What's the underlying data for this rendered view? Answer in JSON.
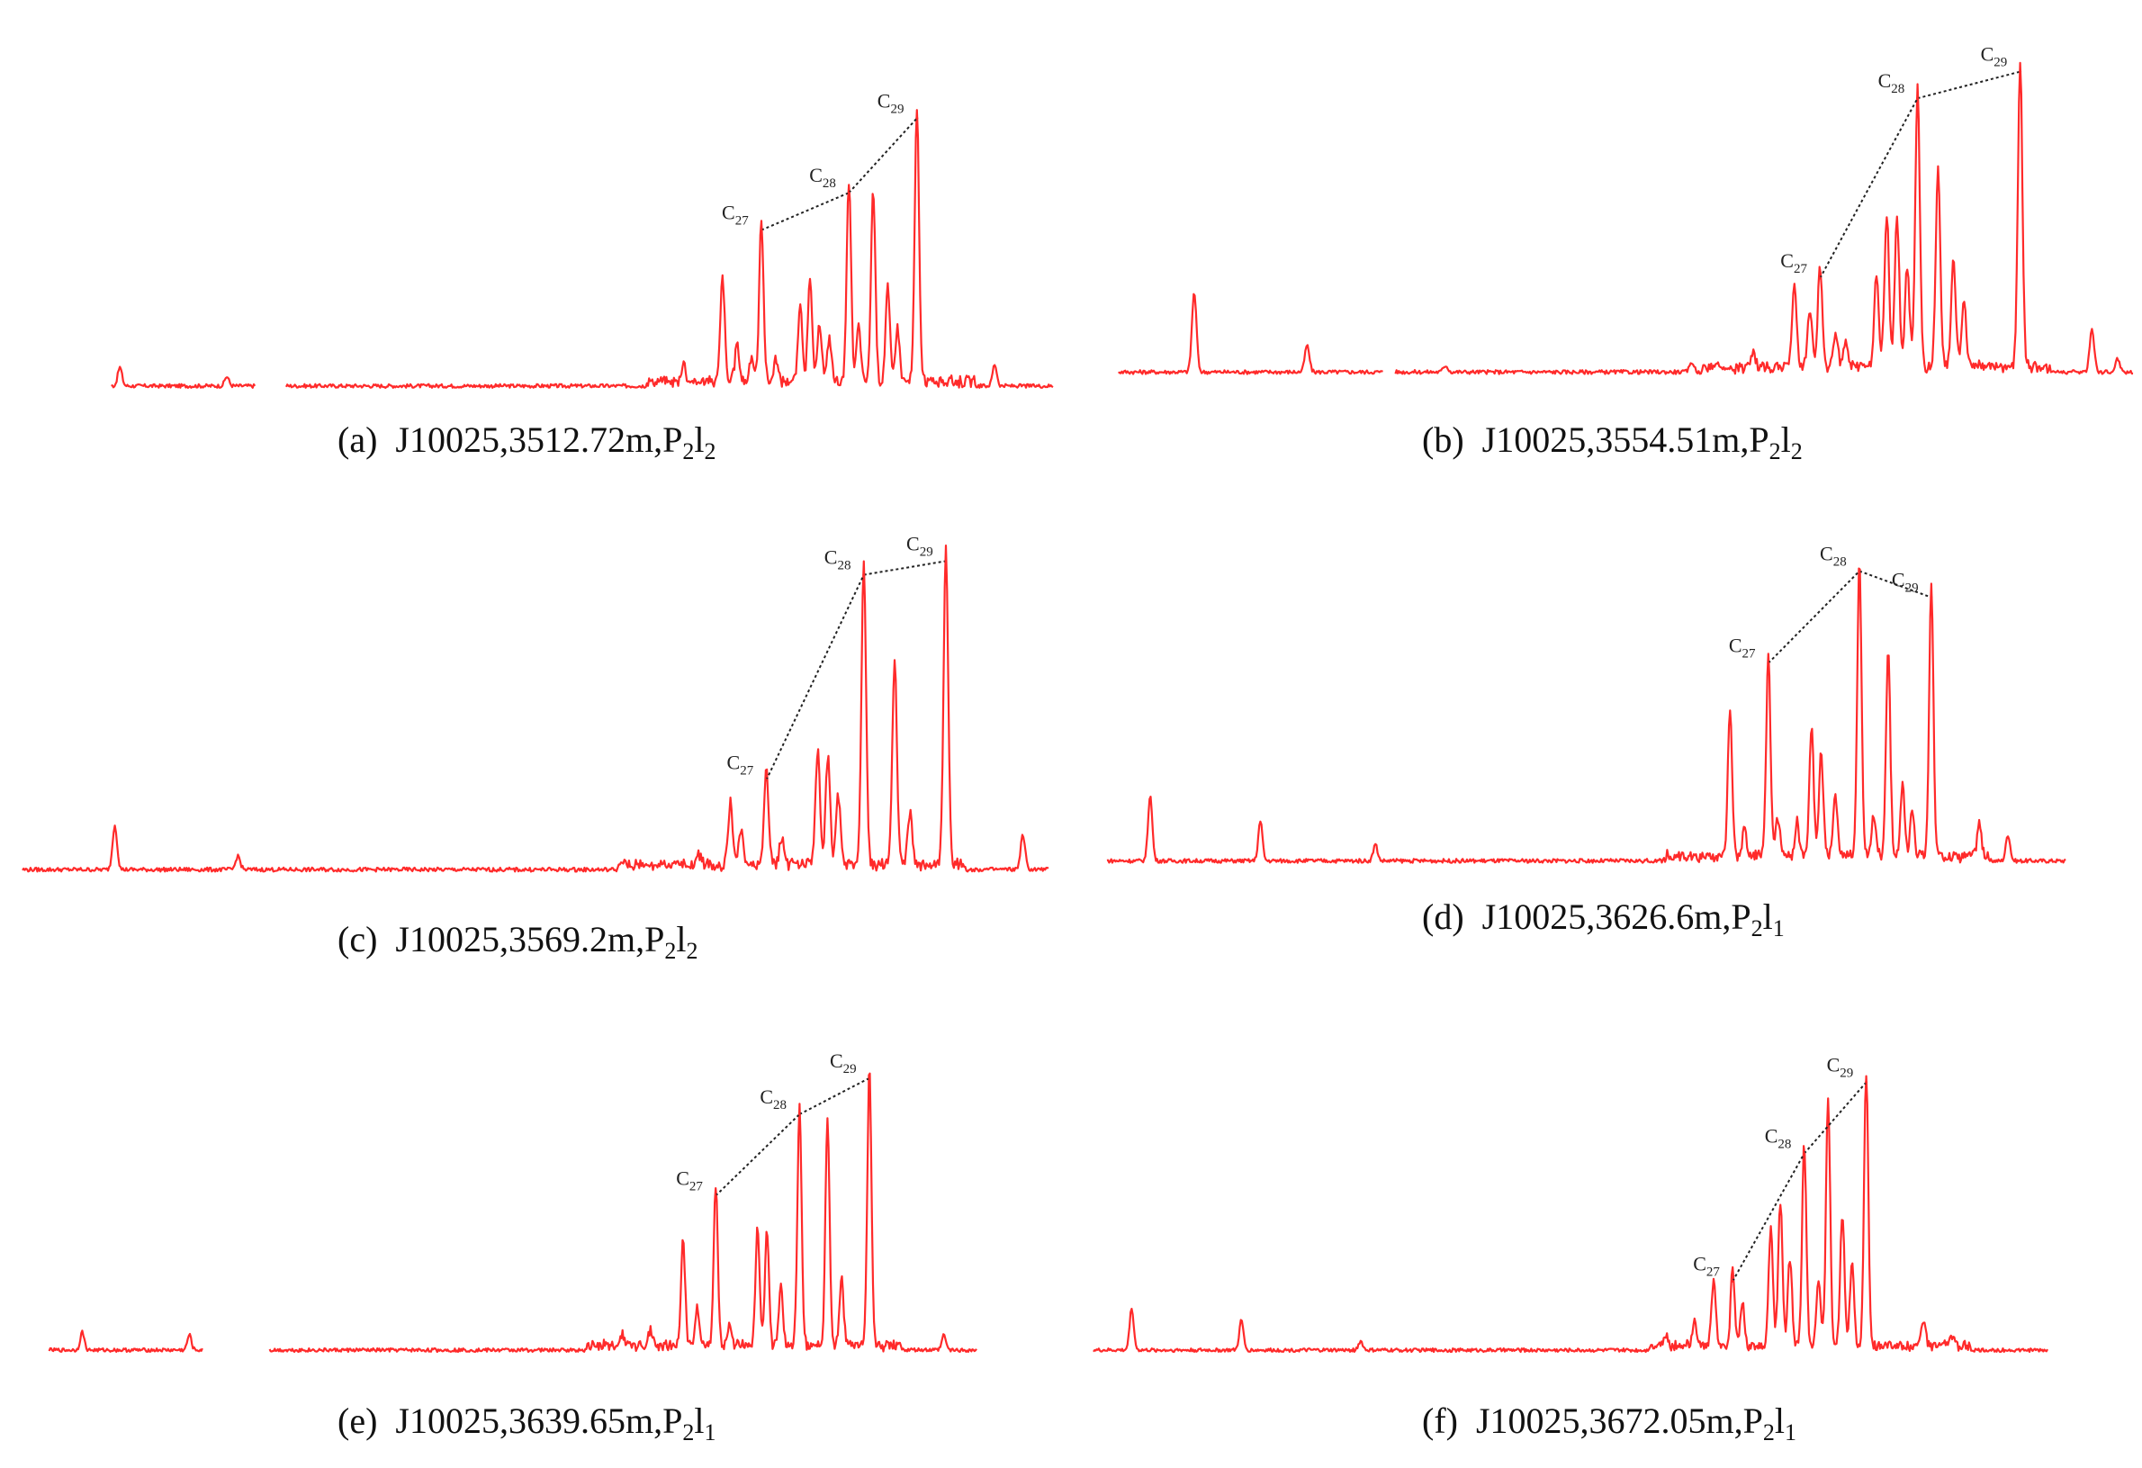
{
  "style": {
    "trace_color": "#ff2a2a",
    "connector_color": "#222222",
    "background": "#ffffff"
  },
  "chart_data": [
    {
      "type": "line",
      "panel": "a",
      "caption": {
        "letter": "(a)",
        "well": "J10025",
        "depth": "3512.72m",
        "formation_base": "P",
        "formation_sub1": "2",
        "formation_mid": "l",
        "formation_sub2": "2"
      },
      "marked_peaks": [
        {
          "label": "C",
          "sub": "27",
          "x": 0.7,
          "y": 0.52
        },
        {
          "label": "C",
          "sub": "28",
          "x": 0.79,
          "y": 0.64
        },
        {
          "label": "C",
          "sub": "29",
          "x": 0.86,
          "y": 0.88
        }
      ],
      "peaks": [
        [
          0.04,
          0.06
        ],
        [
          0.15,
          0.03
        ],
        [
          0.62,
          0.06
        ],
        [
          0.66,
          0.34
        ],
        [
          0.675,
          0.12
        ],
        [
          0.69,
          0.08
        ],
        [
          0.7,
          0.52
        ],
        [
          0.715,
          0.07
        ],
        [
          0.74,
          0.24
        ],
        [
          0.75,
          0.32
        ],
        [
          0.76,
          0.18
        ],
        [
          0.77,
          0.14
        ],
        [
          0.79,
          0.64
        ],
        [
          0.8,
          0.18
        ],
        [
          0.815,
          0.62
        ],
        [
          0.83,
          0.3
        ],
        [
          0.84,
          0.18
        ],
        [
          0.86,
          0.88
        ],
        [
          0.94,
          0.07
        ]
      ],
      "gaps": [
        [
          0.0,
          0.03
        ],
        [
          0.18,
          0.21
        ]
      ]
    },
    {
      "type": "line",
      "panel": "b",
      "caption": {
        "letter": "(b)",
        "well": "J10025",
        "depth": "3554.51m",
        "formation_base": "P",
        "formation_sub1": "2",
        "formation_mid": "l",
        "formation_sub2": "2"
      },
      "marked_peaks": [
        {
          "label": "C",
          "sub": "27",
          "x": 0.695,
          "y": 0.3
        },
        {
          "label": "C",
          "sub": "28",
          "x": 0.79,
          "y": 0.84
        },
        {
          "label": "C",
          "sub": "29",
          "x": 0.89,
          "y": 0.92
        }
      ],
      "peaks": [
        [
          0.085,
          0.24
        ],
        [
          0.195,
          0.08
        ],
        [
          0.33,
          0.02
        ],
        [
          0.57,
          0.03
        ],
        [
          0.63,
          0.04
        ],
        [
          0.67,
          0.25
        ],
        [
          0.685,
          0.18
        ],
        [
          0.695,
          0.3
        ],
        [
          0.71,
          0.1
        ],
        [
          0.72,
          0.08
        ],
        [
          0.75,
          0.28
        ],
        [
          0.76,
          0.46
        ],
        [
          0.77,
          0.45
        ],
        [
          0.78,
          0.3
        ],
        [
          0.79,
          0.84
        ],
        [
          0.81,
          0.6
        ],
        [
          0.825,
          0.32
        ],
        [
          0.835,
          0.2
        ],
        [
          0.89,
          0.92
        ],
        [
          0.96,
          0.13
        ],
        [
          0.985,
          0.04
        ]
      ],
      "gaps": [
        [
          0.0,
          0.01
        ],
        [
          0.27,
          0.28
        ]
      ]
    },
    {
      "type": "line",
      "panel": "c",
      "caption": {
        "letter": "(c)",
        "well": "J10025",
        "depth": "3569.2m",
        "formation_base": "P",
        "formation_sub1": "2",
        "formation_mid": "l",
        "formation_sub2": "2"
      },
      "marked_peaks": [
        {
          "label": "C",
          "sub": "27",
          "x": 0.725,
          "y": 0.28
        },
        {
          "label": "C",
          "sub": "28",
          "x": 0.82,
          "y": 0.88
        },
        {
          "label": "C",
          "sub": "29",
          "x": 0.9,
          "y": 0.92
        }
      ],
      "peaks": [
        [
          0.09,
          0.13
        ],
        [
          0.21,
          0.04
        ],
        [
          0.66,
          0.03
        ],
        [
          0.69,
          0.18
        ],
        [
          0.7,
          0.1
        ],
        [
          0.725,
          0.28
        ],
        [
          0.74,
          0.08
        ],
        [
          0.775,
          0.34
        ],
        [
          0.785,
          0.32
        ],
        [
          0.795,
          0.2
        ],
        [
          0.82,
          0.88
        ],
        [
          0.85,
          0.6
        ],
        [
          0.865,
          0.15
        ],
        [
          0.9,
          0.92
        ],
        [
          0.975,
          0.1
        ]
      ],
      "gaps": []
    },
    {
      "type": "line",
      "panel": "d",
      "caption": {
        "letter": "(d)",
        "well": "J10025",
        "depth": "3626.6m",
        "formation_base": "P",
        "formation_sub1": "2",
        "formation_mid": "l",
        "formation_sub2": "1"
      },
      "marked_peaks": [
        {
          "label": "C",
          "sub": "27",
          "x": 0.69,
          "y": 0.62
        },
        {
          "label": "C",
          "sub": "28",
          "x": 0.785,
          "y": 0.9
        },
        {
          "label": "C",
          "sub": "29",
          "x": 0.86,
          "y": 0.82
        }
      ],
      "peaks": [
        [
          0.045,
          0.2
        ],
        [
          0.16,
          0.12
        ],
        [
          0.28,
          0.05
        ],
        [
          0.65,
          0.45
        ],
        [
          0.665,
          0.08
        ],
        [
          0.69,
          0.62
        ],
        [
          0.7,
          0.12
        ],
        [
          0.72,
          0.1
        ],
        [
          0.735,
          0.4
        ],
        [
          0.745,
          0.32
        ],
        [
          0.76,
          0.18
        ],
        [
          0.785,
          0.9
        ],
        [
          0.8,
          0.12
        ],
        [
          0.815,
          0.64
        ],
        [
          0.83,
          0.22
        ],
        [
          0.84,
          0.14
        ],
        [
          0.86,
          0.82
        ],
        [
          0.91,
          0.1
        ],
        [
          0.94,
          0.08
        ]
      ],
      "gaps": []
    },
    {
      "type": "line",
      "panel": "e",
      "caption": {
        "letter": "(e)",
        "well": "J10025",
        "depth": "3639.65m",
        "formation_base": "P",
        "formation_sub1": "2",
        "formation_mid": "l",
        "formation_sub2": "1"
      },
      "marked_peaks": [
        {
          "label": "C",
          "sub": "27",
          "x": 0.72,
          "y": 0.53
        },
        {
          "label": "C",
          "sub": "28",
          "x": 0.81,
          "y": 0.8
        },
        {
          "label": "C",
          "sub": "29",
          "x": 0.885,
          "y": 0.92
        }
      ],
      "peaks": [
        [
          0.04,
          0.06
        ],
        [
          0.155,
          0.05
        ],
        [
          0.62,
          0.04
        ],
        [
          0.65,
          0.06
        ],
        [
          0.685,
          0.36
        ],
        [
          0.7,
          0.12
        ],
        [
          0.72,
          0.53
        ],
        [
          0.735,
          0.08
        ],
        [
          0.765,
          0.4
        ],
        [
          0.775,
          0.38
        ],
        [
          0.79,
          0.2
        ],
        [
          0.81,
          0.8
        ],
        [
          0.84,
          0.76
        ],
        [
          0.855,
          0.22
        ],
        [
          0.885,
          0.92
        ],
        [
          0.965,
          0.05
        ]
      ],
      "gaps": [
        [
          0.0,
          0.004
        ],
        [
          0.17,
          0.24
        ]
      ]
    },
    {
      "type": "line",
      "panel": "f",
      "caption": {
        "letter": "(f)",
        "well": "J10025",
        "depth": "3672.05m",
        "formation_base": "P",
        "formation_sub1": "2",
        "formation_mid": "l",
        "formation_sub2": "1"
      },
      "marked_peaks": [
        {
          "label": "C",
          "sub": "27",
          "x": 0.67,
          "y": 0.25
        },
        {
          "label": "C",
          "sub": "28",
          "x": 0.745,
          "y": 0.68
        },
        {
          "label": "C",
          "sub": "29",
          "x": 0.81,
          "y": 0.92
        }
      ],
      "peaks": [
        [
          0.04,
          0.14
        ],
        [
          0.155,
          0.1
        ],
        [
          0.28,
          0.03
        ],
        [
          0.6,
          0.04
        ],
        [
          0.63,
          0.08
        ],
        [
          0.65,
          0.22
        ],
        [
          0.67,
          0.25
        ],
        [
          0.68,
          0.15
        ],
        [
          0.71,
          0.4
        ],
        [
          0.72,
          0.48
        ],
        [
          0.73,
          0.3
        ],
        [
          0.745,
          0.68
        ],
        [
          0.76,
          0.22
        ],
        [
          0.77,
          0.82
        ],
        [
          0.785,
          0.45
        ],
        [
          0.795,
          0.28
        ],
        [
          0.81,
          0.92
        ],
        [
          0.87,
          0.08
        ],
        [
          0.9,
          0.03
        ]
      ],
      "gaps": []
    }
  ]
}
